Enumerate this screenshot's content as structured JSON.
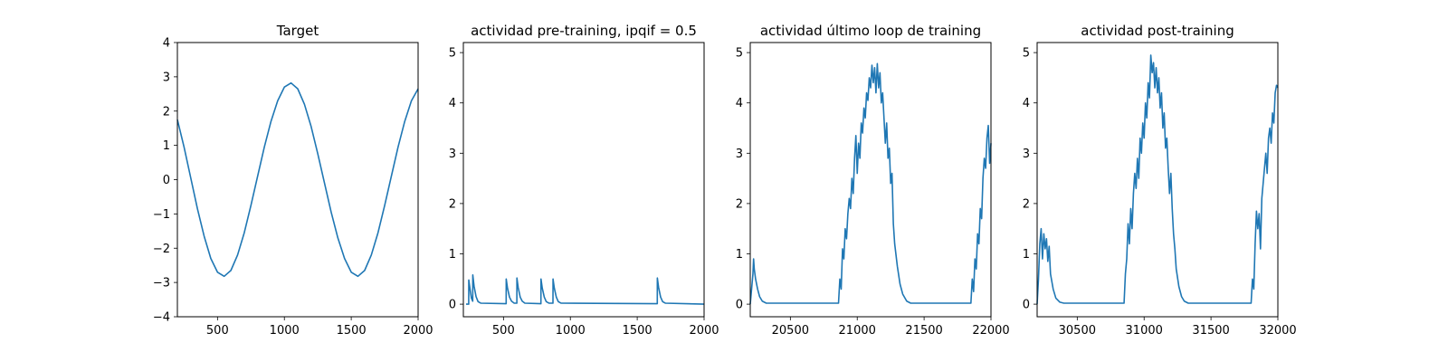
{
  "figure": {
    "background": "#ffffff",
    "line_color": "#1f77b4"
  },
  "chart_data": [
    {
      "type": "line",
      "title": "Target",
      "xlim": [
        200,
        2000
      ],
      "ylim": [
        -4,
        4
      ],
      "xticks": [
        500,
        1000,
        1500,
        2000
      ],
      "yticks": [
        -4,
        -3,
        -2,
        -1,
        0,
        1,
        2,
        3,
        4
      ],
      "xlabel": "",
      "ylabel": "",
      "series": [
        {
          "x": [
            200,
            250,
            300,
            350,
            400,
            450,
            500,
            550,
            600,
            650,
            700,
            750,
            800,
            850,
            900,
            950,
            1000,
            1050,
            1100,
            1150,
            1200,
            1250,
            1300,
            1350,
            1400,
            1450,
            1500,
            1550,
            1600,
            1650,
            1700,
            1750,
            1800,
            1850,
            1900,
            1950,
            2000
          ],
          "values": [
            1.75,
            0.95,
            0.05,
            -0.85,
            -1.65,
            -2.3,
            -2.7,
            -2.82,
            -2.65,
            -2.2,
            -1.55,
            -0.75,
            0.1,
            0.95,
            1.7,
            2.3,
            2.7,
            2.82,
            2.65,
            2.2,
            1.55,
            0.75,
            -0.1,
            -0.95,
            -1.7,
            -2.3,
            -2.7,
            -2.82,
            -2.65,
            -2.2,
            -1.55,
            -0.75,
            0.1,
            0.95,
            1.7,
            2.3,
            2.65
          ]
        }
      ]
    },
    {
      "type": "line",
      "title": "actividad pre-training, ipqif = 0.5",
      "xlim": [
        200,
        2000
      ],
      "ylim": [
        -0.25,
        5.2
      ],
      "xticks": [
        500,
        1000,
        1500,
        2000
      ],
      "yticks": [
        0,
        1,
        2,
        3,
        4,
        5
      ],
      "xlabel": "",
      "ylabel": "",
      "series": [
        {
          "x": [
            220,
            240,
            240.5,
            250,
            260,
            270,
            270.5,
            280,
            295,
            310,
            330,
            520,
            520.5,
            530,
            545,
            560,
            580,
            600,
            600.5,
            610,
            625,
            640,
            660,
            780,
            780.5,
            790,
            805,
            820,
            840,
            870,
            870.5,
            880,
            895,
            910,
            930,
            1650,
            1650.5,
            1660,
            1675,
            1690,
            1710,
            2000
          ],
          "values": [
            0,
            0,
            0.48,
            0.3,
            0.12,
            0.06,
            0.58,
            0.36,
            0.15,
            0.05,
            0.02,
            0.01,
            0.5,
            0.32,
            0.14,
            0.06,
            0.02,
            0.02,
            0.52,
            0.33,
            0.14,
            0.06,
            0.02,
            0.01,
            0.5,
            0.32,
            0.14,
            0.05,
            0.02,
            0.02,
            0.5,
            0.32,
            0.14,
            0.05,
            0.02,
            0.01,
            0.52,
            0.33,
            0.14,
            0.05,
            0.02,
            0
          ]
        }
      ]
    },
    {
      "type": "line",
      "title": "actividad último loop de training",
      "xlim": [
        20200,
        22000
      ],
      "ylim": [
        -0.25,
        5.2
      ],
      "xticks": [
        20500,
        21000,
        21500,
        22000
      ],
      "yticks": [
        0,
        1,
        2,
        3,
        4,
        5
      ],
      "xlabel": "",
      "ylabel": "",
      "series": [
        {
          "x": [
            20200,
            20210,
            20220,
            20225,
            20230,
            20240,
            20255,
            20270,
            20290,
            20320,
            20860,
            20870,
            20880,
            20890,
            20900,
            20910,
            20920,
            20930,
            20940,
            20950,
            20960,
            20970,
            20980,
            20990,
            21000,
            21010,
            21020,
            21030,
            21040,
            21050,
            21060,
            21070,
            21080,
            21090,
            21100,
            21110,
            21120,
            21130,
            21140,
            21150,
            21160,
            21170,
            21180,
            21190,
            21200,
            21210,
            21220,
            21230,
            21240,
            21250,
            21260,
            21270,
            21280,
            21300,
            21320,
            21340,
            21370,
            21400,
            21850,
            21860,
            21870,
            21880,
            21890,
            21900,
            21910,
            21920,
            21930,
            21940,
            21950,
            21960,
            21970,
            21980,
            21990,
            22000
          ],
          "values": [
            0,
            0.3,
            0.6,
            0.9,
            0.7,
            0.5,
            0.3,
            0.15,
            0.06,
            0.02,
            0.02,
            0.5,
            0.3,
            1.1,
            0.9,
            1.5,
            1.3,
            1.8,
            2.1,
            1.9,
            2.5,
            2.2,
            2.9,
            3.35,
            2.6,
            3.2,
            2.9,
            3.6,
            3.4,
            3.9,
            3.7,
            4.2,
            4.05,
            4.5,
            4.3,
            4.75,
            4.4,
            4.7,
            4.2,
            4.78,
            4.3,
            4.6,
            4.0,
            4.2,
            3.7,
            3.2,
            3.6,
            2.9,
            3.1,
            2.4,
            2.6,
            1.6,
            1.2,
            0.75,
            0.4,
            0.2,
            0.06,
            0.02,
            0.02,
            0.5,
            0.25,
            0.9,
            0.7,
            1.4,
            1.2,
            1.9,
            1.7,
            2.5,
            2.9,
            2.7,
            3.3,
            3.55,
            2.8,
            3.2
          ]
        }
      ]
    },
    {
      "type": "line",
      "title": "actividad post-training",
      "xlim": [
        30200,
        32000
      ],
      "ylim": [
        -0.25,
        5.2
      ],
      "xticks": [
        30500,
        31000,
        31500,
        32000
      ],
      "yticks": [
        0,
        1,
        2,
        3,
        4,
        5
      ],
      "xlabel": "",
      "ylabel": "",
      "series": [
        {
          "x": [
            30200,
            30210,
            30220,
            30230,
            30240,
            30250,
            30260,
            30270,
            30280,
            30290,
            30300,
            30320,
            30340,
            30370,
            30400,
            30850,
            30860,
            30870,
            30880,
            30890,
            30900,
            30910,
            30920,
            30930,
            30940,
            30950,
            30960,
            30970,
            30980,
            30990,
            31000,
            31010,
            31020,
            31030,
            31040,
            31050,
            31060,
            31070,
            31080,
            31090,
            31100,
            31110,
            31120,
            31130,
            31140,
            31150,
            31160,
            31170,
            31180,
            31190,
            31200,
            31210,
            31220,
            31230,
            31240,
            31260,
            31280,
            31300,
            31330,
            31360,
            31800,
            31810,
            31820,
            31830,
            31840,
            31850,
            31860,
            31870,
            31880,
            31890,
            31900,
            31910,
            31920,
            31930,
            31940,
            31950,
            31960,
            31970,
            31980,
            31990,
            32000
          ],
          "values": [
            0,
            0.5,
            1.2,
            1.5,
            0.9,
            1.4,
            1.1,
            1.3,
            0.85,
            1.15,
            0.6,
            0.3,
            0.12,
            0.04,
            0.02,
            0.02,
            0.6,
            0.9,
            1.6,
            1.2,
            1.9,
            1.5,
            2.2,
            2.6,
            2.3,
            2.9,
            2.5,
            3.3,
            3.0,
            3.6,
            3.3,
            4.0,
            3.7,
            4.4,
            4.1,
            4.95,
            4.6,
            4.8,
            4.3,
            4.7,
            4.2,
            4.5,
            3.9,
            4.2,
            3.5,
            3.8,
            3.1,
            3.3,
            2.7,
            2.2,
            2.6,
            1.9,
            1.4,
            1.1,
            0.7,
            0.35,
            0.15,
            0.06,
            0.02,
            0.02,
            0.02,
            0.5,
            0.3,
            1.2,
            1.85,
            1.5,
            1.8,
            1.1,
            2.1,
            2.4,
            2.7,
            3.0,
            2.6,
            3.3,
            3.5,
            3.2,
            3.8,
            3.6,
            4.2,
            4.35,
            4.3
          ]
        }
      ]
    }
  ]
}
